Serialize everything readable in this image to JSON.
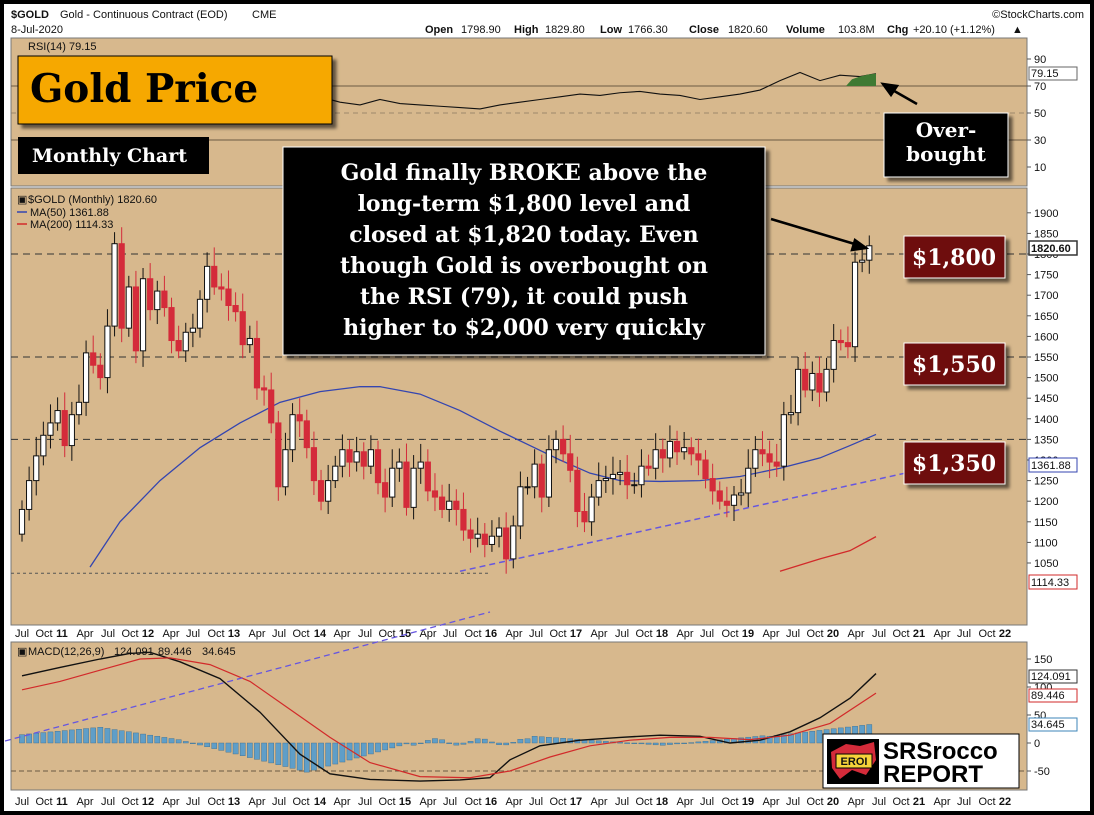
{
  "header": {
    "symbol": "$GOLD",
    "name": "Gold - Continuous Contract (EOD)",
    "exchange": "CME",
    "date": "8-Jul-2020",
    "watermark": "©StockCharts.com",
    "open_label": "Open",
    "open": "1798.90",
    "high_label": "High",
    "high": "1829.80",
    "low_label": "Low",
    "low": "1766.30",
    "close_label": "Close",
    "close": "1820.60",
    "volume_label": "Volume",
    "volume": "103.8M",
    "chg_label": "Chg",
    "chg": "+20.10 (+1.12%)",
    "chg_arrow": "▲"
  },
  "annotations": {
    "title": "Gold Price",
    "subtitle": "Monthly Chart",
    "commentary": [
      "Gold finally BROKE above the",
      "long-term $1,800 level and",
      "closed at $1,820 today.  Even",
      "though Gold is overbought on",
      "the RSI (79), it could push",
      "higher to $2,000 very quickly"
    ],
    "overbought": [
      "Over-",
      "bought"
    ],
    "level_1800": "$1,800",
    "level_1550": "$1,550",
    "level_1350": "$1,350",
    "logo_eroi": "EROI",
    "logo_line1": "SRSrocco",
    "logo_line2": "REPORT"
  },
  "rsi": {
    "label": "RSI(14) 79.15",
    "current": "79.15",
    "ticks": [
      "90",
      "70",
      "50",
      "30",
      "10"
    ]
  },
  "price_panel": {
    "legend_main": "$GOLD (Monthly) 1820.60",
    "legend_ma50": "MA(50) 1361.88",
    "legend_ma200": "MA(200) 1114.33",
    "ticks": [
      "1900",
      "1850",
      "1800",
      "1750",
      "1700",
      "1650",
      "1600",
      "1550",
      "1500",
      "1450",
      "1400",
      "1350",
      "1300",
      "1250",
      "1200",
      "1150",
      "1100",
      "1050"
    ],
    "last_price": "1820.60",
    "ma50_value": "1361.88",
    "ma200_value": "1114.33"
  },
  "macd": {
    "label_main": "MACD(12,26,9)",
    "macd_value": "124.091",
    "signal_value": "89.446",
    "hist_value": "34.645",
    "ticks": [
      "150",
      "100",
      "50",
      "0",
      "-50"
    ]
  },
  "time_axis": [
    {
      "t": "Jul",
      "x": 22
    },
    {
      "t": "Oct",
      "x": 44
    },
    {
      "t": "11",
      "x": 62,
      "b": true
    },
    {
      "t": "Apr",
      "x": 85
    },
    {
      "t": "Jul",
      "x": 108
    },
    {
      "t": "Oct",
      "x": 130
    },
    {
      "t": "12",
      "x": 148,
      "b": true
    },
    {
      "t": "Apr",
      "x": 171
    },
    {
      "t": "Jul",
      "x": 193
    },
    {
      "t": "Oct",
      "x": 216
    },
    {
      "t": "13",
      "x": 234,
      "b": true
    },
    {
      "t": "Apr",
      "x": 257
    },
    {
      "t": "Jul",
      "x": 279
    },
    {
      "t": "Oct",
      "x": 301
    },
    {
      "t": "14",
      "x": 320,
      "b": true
    },
    {
      "t": "Apr",
      "x": 342
    },
    {
      "t": "Jul",
      "x": 365
    },
    {
      "t": "Oct",
      "x": 387
    },
    {
      "t": "15",
      "x": 405,
      "b": true
    },
    {
      "t": "Apr",
      "x": 428
    },
    {
      "t": "Jul",
      "x": 450
    },
    {
      "t": "Oct",
      "x": 473
    },
    {
      "t": "16",
      "x": 491,
      "b": true
    },
    {
      "t": "Apr",
      "x": 514
    },
    {
      "t": "Jul",
      "x": 536
    },
    {
      "t": "Oct",
      "x": 558
    },
    {
      "t": "17",
      "x": 576,
      "b": true
    },
    {
      "t": "Apr",
      "x": 599
    },
    {
      "t": "Jul",
      "x": 622
    },
    {
      "t": "Oct",
      "x": 644
    },
    {
      "t": "18",
      "x": 662,
      "b": true
    },
    {
      "t": "Apr",
      "x": 685
    },
    {
      "t": "Jul",
      "x": 707
    },
    {
      "t": "Oct",
      "x": 730
    },
    {
      "t": "19",
      "x": 748,
      "b": true
    },
    {
      "t": "Apr",
      "x": 771
    },
    {
      "t": "Jul",
      "x": 793
    },
    {
      "t": "Oct",
      "x": 815
    },
    {
      "t": "20",
      "x": 833,
      "b": true
    },
    {
      "t": "Apr",
      "x": 856
    },
    {
      "t": "Jul",
      "x": 879
    },
    {
      "t": "Oct",
      "x": 901
    },
    {
      "t": "21",
      "x": 919,
      "b": true
    },
    {
      "t": "Apr",
      "x": 942
    },
    {
      "t": "Jul",
      "x": 964
    },
    {
      "t": "Oct",
      "x": 987
    },
    {
      "t": "22",
      "x": 1005,
      "b": true
    }
  ],
  "colors": {
    "panel_bg": "#d7b88d",
    "up": "#111111",
    "down": "#d42b3a",
    "ma50": "#3445b0",
    "ma200": "#d22a2a",
    "trend": "#6656e0",
    "rsi_fill": "#3f7a33",
    "macd_hist": "#5f9ec8",
    "title_box": "#f6a800",
    "level_box": "#6e0e10"
  },
  "chart_data": {
    "type": "candlestick",
    "title": "$GOLD (Monthly)",
    "units": "USD per troy ounce",
    "x_range": [
      "2010-07",
      "2020-07"
    ],
    "ylim": [
      1020,
      1920
    ],
    "horizontal_levels": [
      1800,
      1550,
      1350
    ],
    "monthly_close_series": [
      1180,
      1250,
      1310,
      1360,
      1390,
      1420,
      1335,
      1410,
      1440,
      1560,
      1530,
      1500,
      1625,
      1825,
      1620,
      1720,
      1565,
      1740,
      1665,
      1710,
      1670,
      1590,
      1565,
      1610,
      1620,
      1690,
      1770,
      1720,
      1715,
      1675,
      1660,
      1580,
      1595,
      1475,
      1470,
      1390,
      1235,
      1325,
      1410,
      1395,
      1330,
      1250,
      1200,
      1250,
      1285,
      1325,
      1295,
      1320,
      1285,
      1325,
      1245,
      1210,
      1280,
      1295,
      1185,
      1280,
      1295,
      1225,
      1210,
      1180,
      1200,
      1180,
      1130,
      1110,
      1120,
      1095,
      1115,
      1135,
      1060,
      1140,
      1235,
      1235,
      1290,
      1210,
      1325,
      1350,
      1315,
      1275,
      1175,
      1150,
      1210,
      1250,
      1255,
      1265,
      1270,
      1240,
      1240,
      1285,
      1280,
      1325,
      1305,
      1345,
      1320,
      1330,
      1315,
      1300,
      1255,
      1225,
      1200,
      1190,
      1215,
      1220,
      1280,
      1325,
      1315,
      1295,
      1285,
      1410,
      1415,
      1520,
      1470,
      1510,
      1465,
      1520,
      1590,
      1585,
      1575,
      1780,
      1785,
      1820
    ],
    "ma50_endpoints": {
      "2020-07": 1361.88
    },
    "ma200_endpoints": {
      "2020-07": 1114.33
    },
    "rsi14": 79.15,
    "macd": {
      "macd": 124.091,
      "signal": 89.446,
      "histogram": 34.645
    }
  }
}
